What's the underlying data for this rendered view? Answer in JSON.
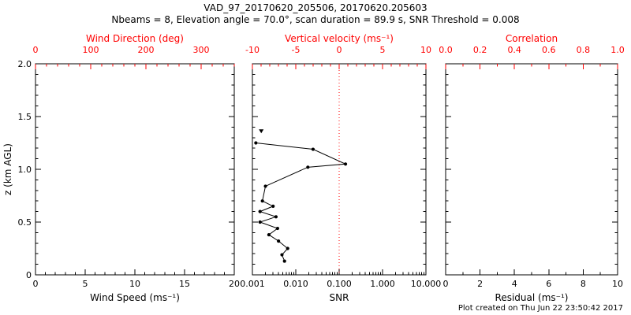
{
  "header": {
    "title": "VAD_97_20170620_205506, 20170620.205603",
    "subtitle": "Nbeams = 8, Elevation angle = 70.0°, scan duration = 89.9 s, SNR Threshold = 0.008"
  },
  "footer": {
    "created": "Plot created on Thu Jun 22 23:50:42 2017"
  },
  "colors": {
    "background": "#ffffff",
    "axis": "#000000",
    "secondary_axis": "#ff0000"
  },
  "chart_data": [
    {
      "type": "line",
      "panel": "wind",
      "bottom_axis": {
        "label": "Wind Speed (ms⁻¹)",
        "range": [
          0,
          20
        ],
        "ticks": [
          0,
          5,
          10,
          15,
          20
        ],
        "tick_labels": [
          "0",
          "5",
          "10",
          "15",
          "20"
        ],
        "scale": "linear",
        "minor_divisions": 5
      },
      "top_axis": {
        "label": "Wind Direction (deg)",
        "range": [
          0,
          360
        ],
        "ticks": [
          0,
          100,
          200,
          300
        ],
        "tick_labels": [
          "0",
          "100",
          "200",
          "300"
        ],
        "minor_divisions": 5
      },
      "y_axis": {
        "label": "z (km AGL)",
        "range": [
          0,
          2
        ],
        "ticks": [
          2.0,
          1.5,
          1.0,
          0.5,
          0
        ],
        "tick_labels": [
          "2.0",
          "1.5",
          "1.0",
          "0.5",
          "0"
        ],
        "minor_divisions": 5
      },
      "series": []
    },
    {
      "type": "line",
      "panel": "snr",
      "bottom_axis": {
        "label": "SNR",
        "range": [
          0.001,
          10
        ],
        "ticks": [
          0.001,
          0.01,
          0.1,
          1,
          10
        ],
        "tick_labels": [
          "0.001",
          "0.010",
          "0.100",
          "1.000",
          "10.000"
        ],
        "scale": "log"
      },
      "top_axis": {
        "label": "Vertical velocity (ms⁻¹)",
        "range": [
          -10,
          10
        ],
        "ticks": [
          -10,
          -5,
          0,
          5,
          10
        ],
        "tick_labels": [
          "-10",
          "-5",
          "0",
          "5",
          "10"
        ],
        "minor_divisions": 5
      },
      "y_axis": {
        "range": [
          0,
          2
        ],
        "minor_divisions": 5
      },
      "reference_line": {
        "axis": "top",
        "value": 0,
        "style": "dotted",
        "color": "#ff0000"
      },
      "series": [
        {
          "name": "snr-profile",
          "points": [
            [
              0.0055,
              0.13
            ],
            [
              0.0048,
              0.19
            ],
            [
              0.0065,
              0.25
            ],
            [
              0.004,
              0.32
            ],
            [
              0.0024,
              0.38
            ],
            [
              0.0038,
              0.44
            ],
            [
              0.0015,
              0.5
            ],
            [
              0.0035,
              0.55
            ],
            [
              0.0015,
              0.6
            ],
            [
              0.003,
              0.65
            ],
            [
              0.0017,
              0.7
            ],
            [
              0.002,
              0.84
            ],
            [
              0.019,
              1.02
            ],
            [
              0.14,
              1.05
            ],
            [
              0.025,
              1.19
            ],
            [
              0.0012,
              1.25
            ]
          ]
        }
      ],
      "markers": [
        {
          "snr": 0.0016,
          "z": 1.36,
          "shape": "triangle-down"
        }
      ]
    },
    {
      "type": "line",
      "panel": "residual",
      "bottom_axis": {
        "label": "Residual (ms⁻¹)",
        "range": [
          0,
          10
        ],
        "ticks": [
          0,
          2,
          4,
          6,
          8,
          10
        ],
        "tick_labels": [
          "0",
          "2",
          "4",
          "6",
          "8",
          "10"
        ],
        "scale": "linear",
        "minor_divisions": 2
      },
      "top_axis": {
        "label": "Correlation",
        "range": [
          0,
          1
        ],
        "ticks": [
          0.0,
          0.2,
          0.4,
          0.6,
          0.8,
          1.0
        ],
        "tick_labels": [
          "0.0",
          "0.2",
          "0.4",
          "0.6",
          "0.8",
          "1.0"
        ],
        "minor_divisions": 2
      },
      "y_axis": {
        "range": [
          0,
          2
        ],
        "minor_divisions": 5
      },
      "series": []
    }
  ]
}
